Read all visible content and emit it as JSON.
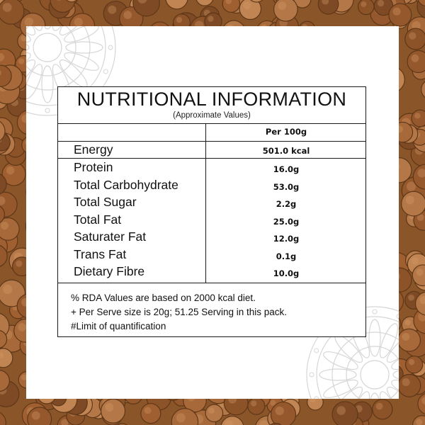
{
  "label": {
    "title": "NUTRITIONAL INFORMATION",
    "subtitle": "(Approximate Values)",
    "column_header": "Per 100g",
    "rows": [
      {
        "name": "Energy",
        "value": "501.0 kcal"
      },
      {
        "name": "Protein",
        "value": "16.0g"
      },
      {
        "name": "Total Carbohydrate",
        "value": "53.0g"
      },
      {
        "name": "Total Sugar",
        "value": "2.2g"
      },
      {
        "name": "Total Fat",
        "value": "25.0g"
      },
      {
        "name": "Saturater Fat",
        "value": "12.0g"
      },
      {
        "name": "Trans Fat",
        "value": "0.1g"
      },
      {
        "name": "Dietary Fibre",
        "value": "10.0g"
      }
    ],
    "footnotes": [
      "% RDA Values are based on 2000 kcal diet.",
      "+ Per Serve size is 20g; 51.25 Serving in this pack.",
      "#Limit of quantification"
    ]
  },
  "colors": {
    "background_beans": "#8a5528",
    "panel": "#ffffff",
    "text": "#111111",
    "ornament": "#d6d6d6"
  },
  "decor": {
    "background": "chickpea-texture",
    "ornament": "mandala-pattern"
  }
}
